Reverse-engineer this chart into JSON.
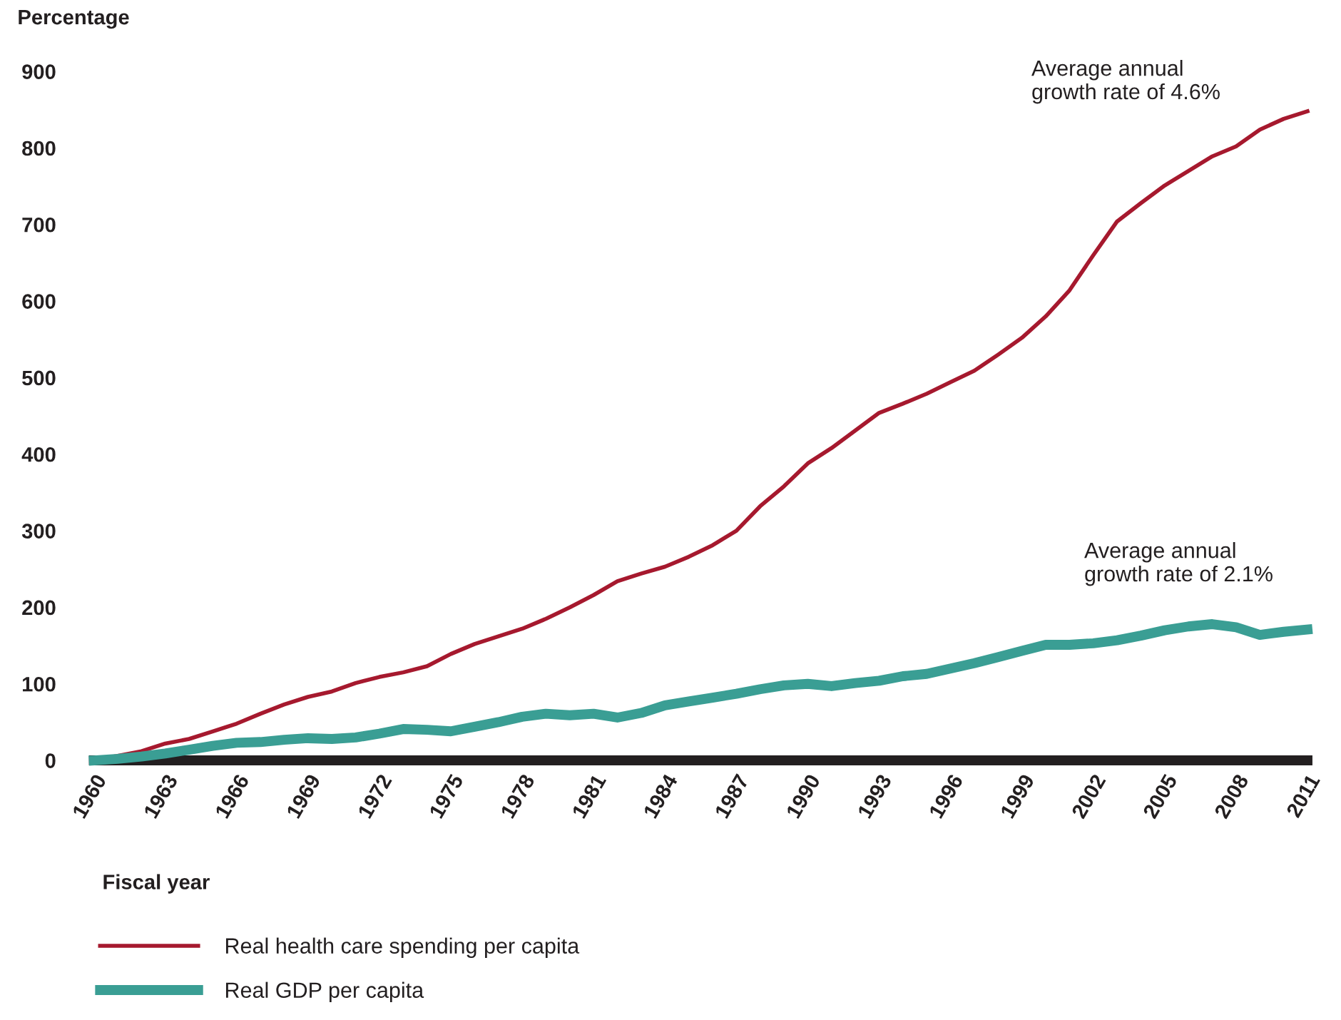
{
  "chart_data": {
    "type": "line",
    "ylabel": "Percentage",
    "xlabel": "Fiscal year",
    "x": [
      1960,
      1961,
      1962,
      1963,
      1964,
      1965,
      1966,
      1967,
      1968,
      1969,
      1970,
      1971,
      1972,
      1973,
      1974,
      1975,
      1976,
      1977,
      1978,
      1979,
      1980,
      1981,
      1982,
      1983,
      1984,
      1985,
      1986,
      1987,
      1988,
      1989,
      1990,
      1991,
      1992,
      1993,
      1994,
      1995,
      1996,
      1997,
      1998,
      1999,
      2000,
      2001,
      2002,
      2003,
      2004,
      2005,
      2006,
      2007,
      2008,
      2009,
      2010,
      2011
    ],
    "series": [
      {
        "name": "Real health care spending per capita",
        "color": "#a6192e",
        "values": [
          0,
          6,
          12,
          22,
          28,
          38,
          48,
          61,
          73,
          83,
          90,
          101,
          109,
          115,
          123,
          139,
          152,
          162,
          172,
          185,
          200,
          216,
          234,
          244,
          253,
          266,
          281,
          300,
          332,
          358,
          388,
          408,
          431,
          454,
          466,
          479,
          494,
          509,
          530,
          552,
          580,
          614,
          660,
          704,
          728,
          751,
          770,
          789,
          802,
          824,
          838,
          848
        ]
      },
      {
        "name": "Real GDP per capita",
        "color": "#3a9e94",
        "values": [
          0,
          2,
          5,
          9,
          14,
          19,
          23,
          24,
          27,
          29,
          28,
          30,
          35,
          41,
          40,
          38,
          44,
          50,
          57,
          61,
          59,
          61,
          56,
          62,
          72,
          77,
          82,
          87,
          93,
          98,
          100,
          97,
          101,
          104,
          110,
          113,
          120,
          127,
          135,
          143,
          151,
          151,
          153,
          157,
          163,
          170,
          175,
          178,
          174,
          164,
          168,
          171
        ]
      }
    ],
    "xlim": [
      1960,
      2011
    ],
    "xticks": [
      1960,
      1963,
      1966,
      1969,
      1972,
      1975,
      1978,
      1981,
      1984,
      1987,
      1990,
      1993,
      1996,
      1999,
      2002,
      2005,
      2008,
      2011
    ],
    "ylim": [
      0,
      900
    ],
    "yticks": [
      0,
      100,
      200,
      300,
      400,
      500,
      600,
      700,
      800,
      900
    ],
    "annotations": [
      "Average annual\ngrowth rate of 4.6%",
      "Average annual\ngrowth rate of 2.1%"
    ],
    "grid": false,
    "legend": "bottom",
    "marker": "none",
    "line_style": "solid"
  }
}
